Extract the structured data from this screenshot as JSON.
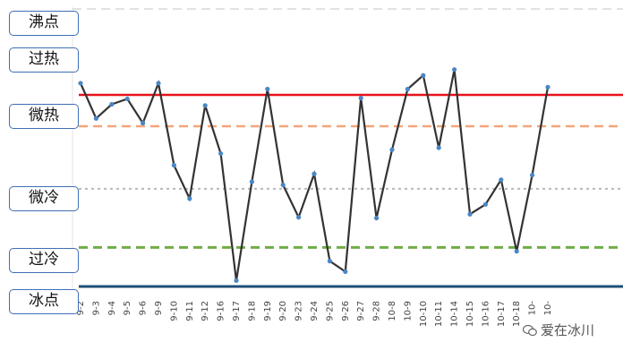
{
  "labels": {
    "boiling": "沸点",
    "overheat": "过热",
    "slightly_hot": "微热",
    "slightly_cold": "微冷",
    "overcold": "过冷",
    "freezing": "冰点"
  },
  "watermark": "爱在冰川",
  "colors": {
    "series": "#333333",
    "marker": "#4a86c5",
    "boiling_line": "#e8121b",
    "hot_line": "#f4a57a",
    "mid_line": "#b8b8b8",
    "cold_line": "#70ad47",
    "freezing_line": "#1f4e79",
    "top_line": "#d9d9d9"
  },
  "chart_data": {
    "type": "line",
    "categories": [
      "9-2",
      "9-3",
      "9-4",
      "9-5",
      "9-6",
      "9-9",
      "9-10",
      "9-11",
      "9-12",
      "9-16",
      "9-17",
      "9-18",
      "9-19",
      "9-20",
      "9-23",
      "9-24",
      "9-25",
      "9-26",
      "9-27",
      "9-28",
      "10-8",
      "10-9",
      "10-10",
      "10-11",
      "10-14",
      "10-15",
      "10-16",
      "10-17",
      "10-18",
      "10-",
      "10-"
    ],
    "values": [
      37,
      28,
      31.6,
      33,
      26.8,
      37,
      16,
      7.5,
      31.3,
      19,
      -13.5,
      11.8,
      35.5,
      11,
      2.7,
      13.8,
      -8.5,
      -11.2,
      33.2,
      2.5,
      20,
      35.5,
      39,
      20.5,
      40.5,
      3.5,
      6,
      12.3,
      -6,
      13.5,
      36
    ],
    "reference_lines": [
      {
        "label": "沸点",
        "value": 34,
        "style": "solid"
      },
      {
        "label": "微热",
        "value": 26,
        "style": "dashed"
      },
      {
        "label": "",
        "value": 10,
        "style": "dotted"
      },
      {
        "label": "过冷",
        "value": -5,
        "style": "dashed"
      },
      {
        "label": "冰点",
        "value": -15,
        "style": "solid"
      }
    ],
    "ylim": [
      -15,
      56
    ],
    "grid": false,
    "legend": "none"
  }
}
